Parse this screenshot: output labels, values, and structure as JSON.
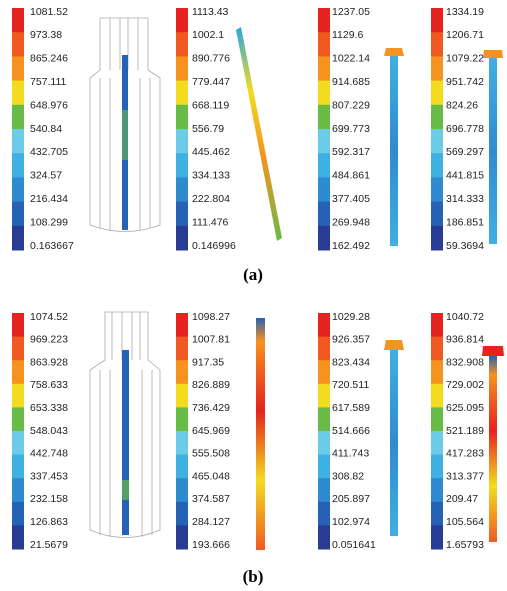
{
  "colors": [
    "#e5231f",
    "#f05a22",
    "#f6921e",
    "#f3dc1f",
    "#68bb46",
    "#6ccbe6",
    "#3fb0e2",
    "#2f8bd0",
    "#2561b4",
    "#283c94"
  ],
  "panels": [
    {
      "caption": "(a)",
      "legends": [
        [
          "1081.52",
          "973.38",
          "865.246",
          "757.111",
          "648.976",
          "540.84",
          "432.705",
          "324.57",
          "216.434",
          "108.299",
          "0.163667"
        ],
        [
          "1113.43",
          "1002.1",
          "890.776",
          "779.447",
          "668.119",
          "556.79",
          "445.462",
          "334.133",
          "222.804",
          "111.476",
          "0.146996"
        ],
        [
          "1237.05",
          "1129.6",
          "1022.14",
          "914.685",
          "807.229",
          "699.773",
          "592.317",
          "484.861",
          "377.405",
          "269.948",
          "162.492"
        ],
        [
          "1334.19",
          "1206.71",
          "1079.22",
          "951.742",
          "824.26",
          "696.778",
          "569.297",
          "441.815",
          "314.333",
          "186.851",
          "59.3694"
        ]
      ]
    },
    {
      "caption": "(b)",
      "legends": [
        [
          "1074.52",
          "969.223",
          "863.928",
          "758.633",
          "653.338",
          "548.043",
          "442.748",
          "337.453",
          "232.158",
          "126.863",
          "21.5679"
        ],
        [
          "1098.27",
          "1007.81",
          "917.35",
          "826.889",
          "736.429",
          "645.969",
          "555.508",
          "465.048",
          "374.587",
          "284.127",
          "193.666"
        ],
        [
          "1029.28",
          "926.357",
          "823.434",
          "720.511",
          "617.589",
          "514.666",
          "411.743",
          "308.82",
          "205.897",
          "102.974",
          "0.051641"
        ],
        [
          "1040.72",
          "936.814",
          "832.908",
          "729.002",
          "625.095",
          "521.189",
          "417.283",
          "313.377",
          "209.47",
          "105.564",
          "1.65793"
        ]
      ]
    }
  ]
}
